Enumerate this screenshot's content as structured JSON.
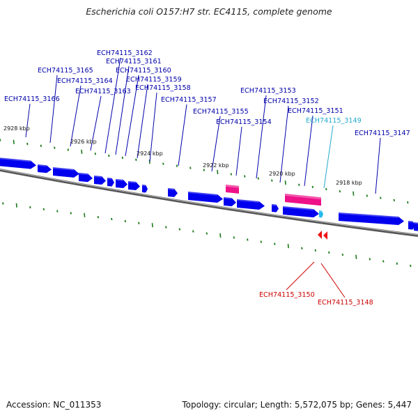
{
  "title": "Escherichia coli O157:H7 str. EC4115, complete genome",
  "footer": {
    "accession": "Accession: NC_011353",
    "summary": "Topology: circular; Length: 5,572,075 bp; Genes: 5,447"
  },
  "colors": {
    "forward_gene": "#0000ee",
    "rna_gene": "#ee1188",
    "highlight_gene": "#22bbee",
    "reverse_gene": "#ee1111",
    "tick": "#1a7a1a",
    "backbone": "#777777",
    "label_forward": "#0000aa",
    "label_reverse": "#cc0000",
    "label_highlight": "#22aacc"
  },
  "ticks": [
    {
      "label": "2928 kbp"
    },
    {
      "label": "2926 kbp"
    },
    {
      "label": "2924 kbp"
    },
    {
      "label": "2922 kbp"
    },
    {
      "label": "2920 kbp"
    },
    {
      "label": "2918 kbp"
    }
  ],
  "gene_labels": [
    {
      "name": "ECH74115_3166",
      "kind": "forward"
    },
    {
      "name": "ECH74115_3165",
      "kind": "forward"
    },
    {
      "name": "ECH74115_3164",
      "kind": "forward"
    },
    {
      "name": "ECH74115_3163",
      "kind": "forward"
    },
    {
      "name": "ECH74115_3162",
      "kind": "forward"
    },
    {
      "name": "ECH74115_3161",
      "kind": "forward"
    },
    {
      "name": "ECH74115_3160",
      "kind": "forward"
    },
    {
      "name": "ECH74115_3159",
      "kind": "forward"
    },
    {
      "name": "ECH74115_3158",
      "kind": "forward"
    },
    {
      "name": "ECH74115_3157",
      "kind": "forward"
    },
    {
      "name": "ECH74115_3155",
      "kind": "forward"
    },
    {
      "name": "ECH74115_3154",
      "kind": "forward"
    },
    {
      "name": "ECH74115_3153",
      "kind": "forward"
    },
    {
      "name": "ECH74115_3152",
      "kind": "forward"
    },
    {
      "name": "ECH74115_3151",
      "kind": "forward"
    },
    {
      "name": "ECH74115_3149",
      "kind": "highlight"
    },
    {
      "name": "ECH74115_3147",
      "kind": "forward"
    },
    {
      "name": "ECH74115_3150",
      "kind": "reverse"
    },
    {
      "name": "ECH74115_3148",
      "kind": "reverse"
    }
  ]
}
